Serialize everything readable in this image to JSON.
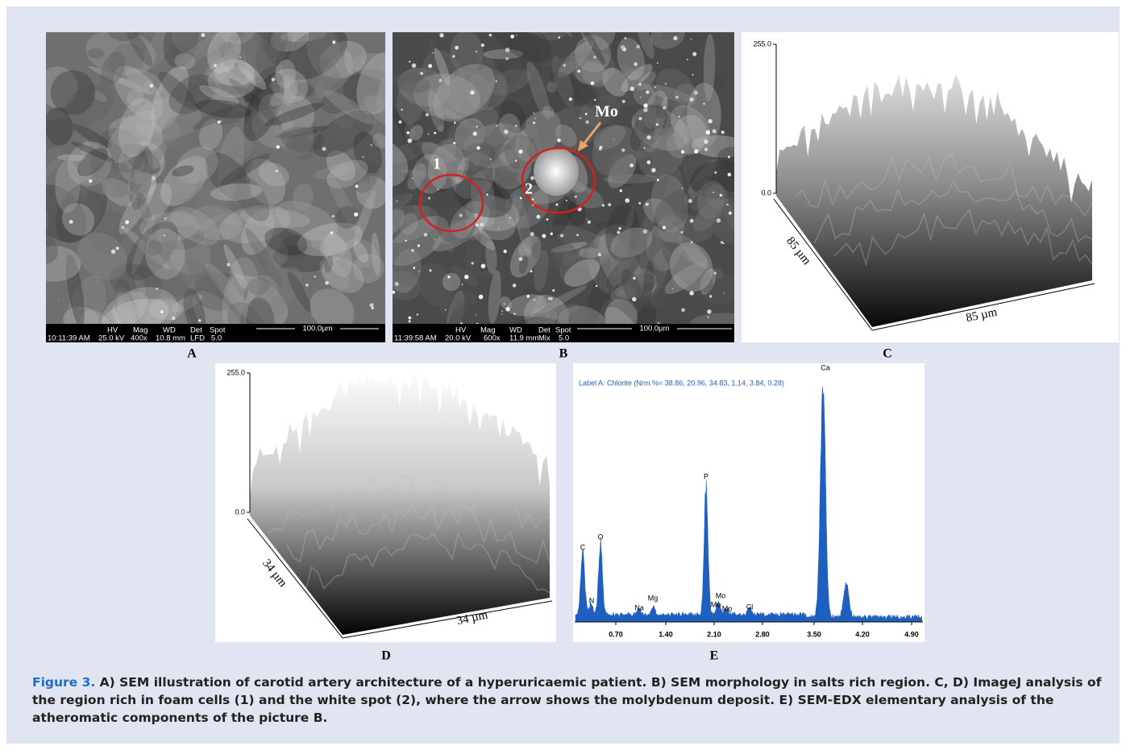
{
  "panels": [
    {
      "label": "A",
      "info_bar": {
        "headers": [
          "HV",
          "Mag",
          "WD",
          "Det",
          "Spot"
        ],
        "values": [
          "10:11:39 AM",
          "25.0 kV",
          "400x",
          "10.8 mm",
          "LFD",
          "5.0"
        ],
        "scale_bar": "100.0µm"
      }
    },
    {
      "label": "B",
      "info_bar": {
        "headers": [
          "HV",
          "Mag",
          "WD",
          "Det",
          "Spot"
        ],
        "values": [
          "11:39:58 AM",
          "20.0 kV",
          "600x",
          "11.9 mm",
          "Mix",
          "5.0"
        ],
        "scale_bar": "100.0µm"
      },
      "annotations": [
        "1",
        "2",
        "Mo"
      ]
    },
    {
      "label": "C",
      "z_ticks": [
        "255.0",
        "0.0"
      ],
      "axis_labels": [
        "85 µm",
        "85 µm"
      ]
    },
    {
      "label": "D",
      "z_ticks": [
        "255.0",
        "0.0"
      ],
      "axis_labels": [
        "34 µm",
        "34 µm"
      ]
    },
    {
      "label": "E",
      "title": "Label A: Chlorite (Nrm.%= 38.86, 20.96, 34.83, 1.14, 3.84, 0.28)",
      "peaks": [
        "C",
        "N",
        "O",
        "Na",
        "Mg",
        "P",
        "Mo",
        "Mo",
        "Mo",
        "Cl",
        "Ca"
      ],
      "x_ticks": [
        "0.70",
        "1.40",
        "2.10",
        "2.80",
        "3.50",
        "4.20",
        "4.90"
      ]
    }
  ],
  "caption": {
    "label": "Figure 3.",
    "text": "A) SEM illustration of carotid artery architecture of a hyperuricaemic patient. B) SEM morphology in salts rich region.  C, D) ImageJ analysis of the region rich in foam cells (1) and the white spot (2), where the arrow shows the molybdenum deposit. E) SEM-EDX elementary analysis of the atheromatic components of the picture B."
  }
}
